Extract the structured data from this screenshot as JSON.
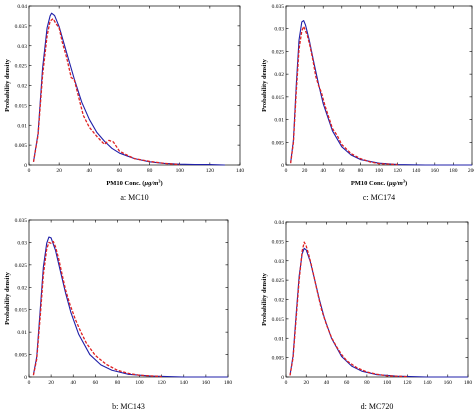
{
  "figure": {
    "colors": {
      "fit": "#1f1fa8",
      "empirical": "#e02020",
      "axis": "#000000"
    }
  },
  "chart_data": [
    {
      "type": "line",
      "caption": "a: MC10",
      "xlabel": "PM10 Conc. (µg/m³)",
      "xlabel_main": "PM10 Conc. (",
      "xlabel_unit": "µg/m",
      "xlabel_sup": "3",
      "xlabel_end": ")",
      "ylabel": "Probability density",
      "xlim": [
        0,
        140
      ],
      "ylim": [
        0,
        0.04
      ],
      "xticks": [
        0,
        20,
        40,
        60,
        80,
        100,
        120,
        140
      ],
      "yticks": [
        0,
        0.005,
        0.01,
        0.015,
        0.02,
        0.025,
        0.03,
        0.035,
        0.04
      ],
      "series": [
        {
          "style": "fit",
          "x": [
            3,
            6,
            9,
            12,
            14,
            15,
            17,
            20,
            25,
            30,
            35,
            40,
            45,
            50,
            55,
            60,
            70,
            80,
            90,
            100,
            110,
            120,
            130
          ],
          "y": [
            0.0008,
            0.0079,
            0.0243,
            0.0345,
            0.0375,
            0.0382,
            0.0376,
            0.0348,
            0.0282,
            0.0217,
            0.0158,
            0.0115,
            0.0082,
            0.006,
            0.0042,
            0.003,
            0.0016,
            0.0008,
            0.0004,
            0.0002,
            0.0001,
            0.0001,
            0.0
          ]
        },
        {
          "style": "empirical",
          "x": [
            3,
            6,
            9,
            12,
            14,
            16,
            18,
            20,
            22,
            25,
            28,
            30,
            33,
            36,
            40,
            45,
            50,
            53,
            56,
            60,
            65,
            70,
            80,
            90,
            100
          ],
          "y": [
            0.0008,
            0.0075,
            0.0225,
            0.0325,
            0.0362,
            0.0368,
            0.0355,
            0.0345,
            0.031,
            0.027,
            0.022,
            0.0215,
            0.017,
            0.0125,
            0.0095,
            0.0072,
            0.0052,
            0.0062,
            0.0058,
            0.0035,
            0.0025,
            0.0016,
            0.0009,
            0.0004,
            0.0001
          ]
        }
      ]
    },
    {
      "type": "line",
      "caption": "c: MC174",
      "xlabel": "PM10 Conc. (µg/m³)",
      "xlabel_main": "PM10 Conc. (",
      "xlabel_unit": "µg/m",
      "xlabel_sup": "3",
      "xlabel_end": ")",
      "ylabel": "Probability density",
      "xlim": [
        0,
        200
      ],
      "ylim": [
        0,
        0.035
      ],
      "xticks": [
        0,
        20,
        40,
        60,
        80,
        100,
        120,
        140,
        160,
        180,
        200
      ],
      "yticks": [
        0,
        0.005,
        0.01,
        0.015,
        0.02,
        0.025,
        0.03,
        0.035
      ],
      "series": [
        {
          "style": "fit",
          "x": [
            5,
            8,
            11,
            14,
            17,
            19,
            21,
            25,
            30,
            35,
            40,
            50,
            60,
            70,
            80,
            100,
            120,
            150,
            200
          ],
          "y": [
            0.0005,
            0.0055,
            0.0175,
            0.0275,
            0.0315,
            0.0318,
            0.0308,
            0.0275,
            0.0225,
            0.0178,
            0.0135,
            0.0075,
            0.004,
            0.0022,
            0.0012,
            0.0004,
            0.0001,
            0.0,
            0.0
          ]
        },
        {
          "style": "empirical",
          "x": [
            5,
            8,
            11,
            14,
            17,
            19,
            21,
            23,
            26,
            29,
            32,
            35,
            38,
            42,
            46,
            50,
            55,
            60,
            70,
            80,
            90,
            100,
            120
          ],
          "y": [
            0.0004,
            0.005,
            0.016,
            0.0255,
            0.0295,
            0.0305,
            0.0295,
            0.0285,
            0.026,
            0.023,
            0.0195,
            0.0175,
            0.016,
            0.013,
            0.0105,
            0.008,
            0.0065,
            0.0045,
            0.0025,
            0.0014,
            0.0007,
            0.0003,
            0.0001
          ]
        }
      ]
    },
    {
      "type": "line",
      "caption": "b: MC143",
      "xlabel": "",
      "ylabel": "Probability density",
      "xlim": [
        0,
        180
      ],
      "ylim": [
        0,
        0.035
      ],
      "xticks": [
        0,
        20,
        40,
        60,
        80,
        100,
        120,
        140,
        160,
        180
      ],
      "yticks": [
        0,
        0.005,
        0.01,
        0.015,
        0.02,
        0.025,
        0.03,
        0.035
      ],
      "series": [
        {
          "style": "fit",
          "x": [
            4,
            7,
            10,
            13,
            16,
            18,
            20,
            24,
            28,
            33,
            38,
            45,
            55,
            65,
            75,
            90,
            110,
            140,
            180
          ],
          "y": [
            0.0005,
            0.0045,
            0.0145,
            0.0245,
            0.0298,
            0.0312,
            0.031,
            0.0282,
            0.024,
            0.0188,
            0.0143,
            0.0095,
            0.005,
            0.0027,
            0.0015,
            0.0006,
            0.0002,
            0.0,
            0.0
          ]
        },
        {
          "style": "empirical",
          "x": [
            4,
            7,
            10,
            13,
            16,
            18,
            20,
            22,
            24,
            27,
            30,
            33,
            37,
            42,
            47,
            52,
            60,
            70,
            80,
            90,
            100,
            120
          ],
          "y": [
            0.0004,
            0.004,
            0.013,
            0.0228,
            0.0285,
            0.03,
            0.0298,
            0.0302,
            0.029,
            0.0262,
            0.0228,
            0.0195,
            0.0162,
            0.0128,
            0.01,
            0.0075,
            0.0048,
            0.0028,
            0.0015,
            0.0008,
            0.0004,
            0.0001
          ]
        }
      ]
    },
    {
      "type": "line",
      "caption": "d: MC720",
      "xlabel": "",
      "ylabel": "Probability density",
      "xlim": [
        0,
        180
      ],
      "ylim": [
        0,
        0.04
      ],
      "xticks": [
        0,
        20,
        40,
        60,
        80,
        100,
        120,
        140,
        160,
        180
      ],
      "yticks": [
        0,
        0.005,
        0.01,
        0.015,
        0.02,
        0.025,
        0.03,
        0.035,
        0.04
      ],
      "series": [
        {
          "style": "fit",
          "x": [
            4,
            7,
            10,
            13,
            16,
            18,
            20,
            24,
            28,
            33,
            38,
            45,
            55,
            65,
            75,
            90,
            110,
            140,
            180
          ],
          "y": [
            0.0005,
            0.0055,
            0.016,
            0.026,
            0.0318,
            0.0332,
            0.0328,
            0.0298,
            0.0255,
            0.02,
            0.0152,
            0.01,
            0.0053,
            0.0028,
            0.0015,
            0.0006,
            0.0002,
            0.0,
            0.0
          ]
        },
        {
          "style": "empirical",
          "x": [
            4,
            7,
            10,
            13,
            16,
            18,
            20,
            22,
            25,
            28,
            31,
            35,
            40,
            45,
            50,
            55,
            60,
            70,
            80,
            90,
            100,
            120
          ],
          "y": [
            0.0004,
            0.005,
            0.015,
            0.025,
            0.0325,
            0.0348,
            0.0338,
            0.032,
            0.029,
            0.0255,
            0.022,
            0.0175,
            0.0135,
            0.0102,
            0.0078,
            0.0058,
            0.0042,
            0.0024,
            0.0013,
            0.0007,
            0.0003,
            0.0001
          ]
        }
      ]
    }
  ]
}
